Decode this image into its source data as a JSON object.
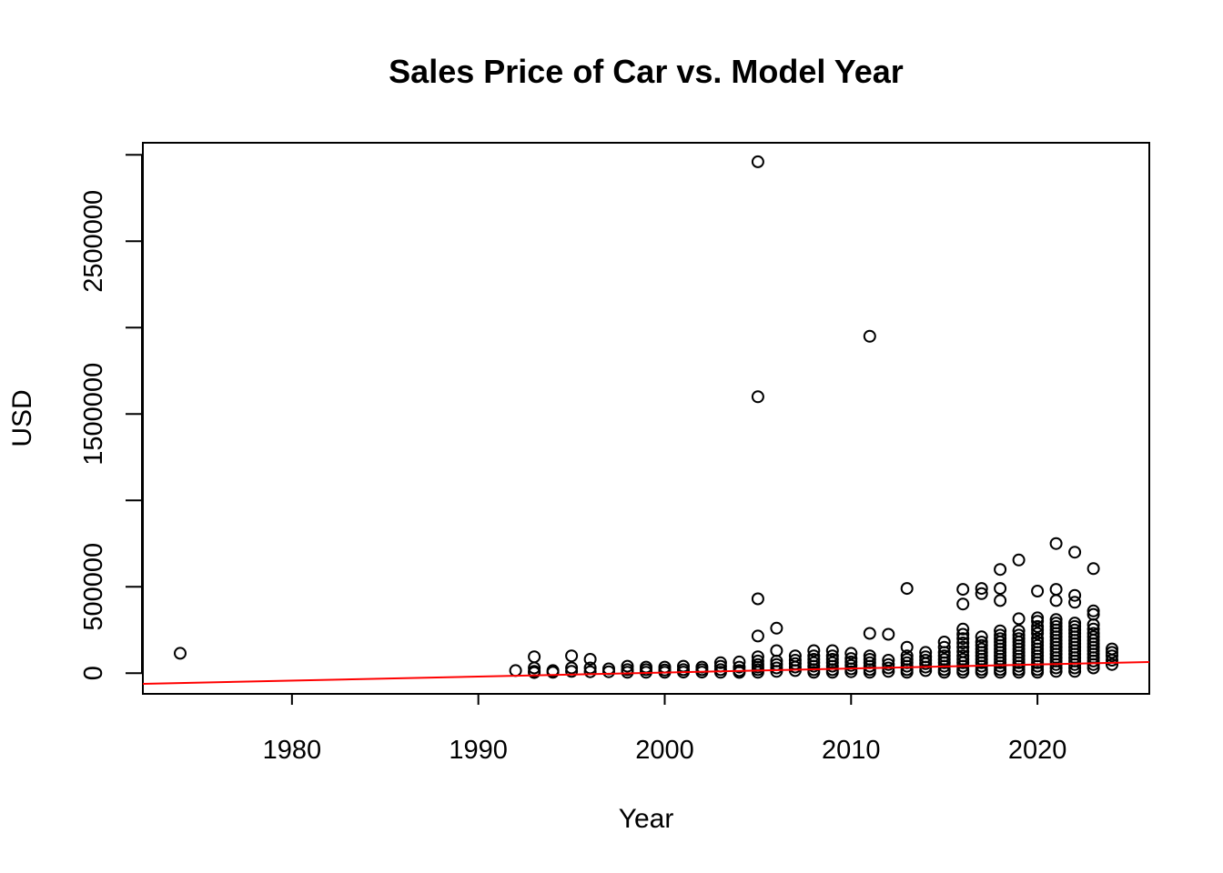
{
  "chart_data": {
    "type": "scatter",
    "title": "Sales Price of Car vs. Model Year",
    "xlabel": "Year",
    "ylabel": "USD",
    "xlim": [
      1972,
      2026
    ],
    "ylim": [
      -120000,
      3070000
    ],
    "x_ticks": [
      1980,
      1990,
      2000,
      2010,
      2020
    ],
    "x_tick_labels": [
      "1980",
      "1990",
      "2000",
      "2010",
      "2020"
    ],
    "y_ticks": [
      0,
      500000,
      1000000,
      1500000,
      2000000,
      2500000,
      3000000
    ],
    "y_tick_labels": [
      "0",
      "500000",
      "",
      "1500000",
      "",
      "2500000",
      ""
    ],
    "grid": false,
    "legend": "none",
    "point_color": "#000000",
    "fit_line": {
      "color": "#ff0000",
      "x": [
        1972,
        2026
      ],
      "y": [
        -62000,
        64000
      ]
    },
    "series": [
      {
        "points": [
          [
            1974,
            115000
          ],
          [
            1992,
            15000
          ],
          [
            1993,
            95000
          ],
          [
            1993,
            30000
          ],
          [
            1993,
            10000
          ],
          [
            1993,
            3000
          ],
          [
            1994,
            15000
          ],
          [
            1994,
            5000
          ],
          [
            1995,
            100000
          ],
          [
            1995,
            30000
          ],
          [
            1995,
            10000
          ],
          [
            1996,
            80000
          ],
          [
            1996,
            30000
          ],
          [
            1996,
            8000
          ],
          [
            1997,
            25000
          ],
          [
            1997,
            8000
          ],
          [
            1998,
            40000
          ],
          [
            1998,
            20000
          ],
          [
            1998,
            5000
          ],
          [
            1999,
            35000
          ],
          [
            1999,
            20000
          ],
          [
            1999,
            5000
          ],
          [
            2000,
            35000
          ],
          [
            2000,
            18000
          ],
          [
            2000,
            5000
          ],
          [
            2001,
            40000
          ],
          [
            2001,
            20000
          ],
          [
            2001,
            6000
          ],
          [
            2002,
            35000
          ],
          [
            2002,
            20000
          ],
          [
            2002,
            6000
          ],
          [
            2003,
            60000
          ],
          [
            2003,
            40000
          ],
          [
            2003,
            20000
          ],
          [
            2003,
            5000
          ],
          [
            2004,
            65000
          ],
          [
            2004,
            35000
          ],
          [
            2004,
            15000
          ],
          [
            2004,
            4000
          ],
          [
            2005,
            2960000
          ],
          [
            2005,
            1600000
          ],
          [
            2005,
            430000
          ],
          [
            2005,
            215000
          ],
          [
            2005,
            95000
          ],
          [
            2005,
            70000
          ],
          [
            2005,
            50000
          ],
          [
            2005,
            35000
          ],
          [
            2005,
            20000
          ],
          [
            2005,
            5000
          ],
          [
            2006,
            260000
          ],
          [
            2006,
            130000
          ],
          [
            2006,
            70000
          ],
          [
            2006,
            50000
          ],
          [
            2006,
            30000
          ],
          [
            2006,
            10000
          ],
          [
            2007,
            100000
          ],
          [
            2007,
            75000
          ],
          [
            2007,
            55000
          ],
          [
            2007,
            35000
          ],
          [
            2007,
            15000
          ],
          [
            2008,
            130000
          ],
          [
            2008,
            100000
          ],
          [
            2008,
            80000
          ],
          [
            2008,
            60000
          ],
          [
            2008,
            40000
          ],
          [
            2008,
            20000
          ],
          [
            2008,
            5000
          ],
          [
            2009,
            130000
          ],
          [
            2009,
            100000
          ],
          [
            2009,
            80000
          ],
          [
            2009,
            60000
          ],
          [
            2009,
            40000
          ],
          [
            2009,
            20000
          ],
          [
            2009,
            5000
          ],
          [
            2010,
            115000
          ],
          [
            2010,
            85000
          ],
          [
            2010,
            65000
          ],
          [
            2010,
            45000
          ],
          [
            2010,
            25000
          ],
          [
            2010,
            8000
          ],
          [
            2011,
            1950000
          ],
          [
            2011,
            230000
          ],
          [
            2011,
            100000
          ],
          [
            2011,
            80000
          ],
          [
            2011,
            60000
          ],
          [
            2011,
            40000
          ],
          [
            2011,
            20000
          ],
          [
            2011,
            5000
          ],
          [
            2012,
            225000
          ],
          [
            2012,
            75000
          ],
          [
            2012,
            50000
          ],
          [
            2012,
            30000
          ],
          [
            2012,
            10000
          ],
          [
            2013,
            490000
          ],
          [
            2013,
            150000
          ],
          [
            2013,
            100000
          ],
          [
            2013,
            80000
          ],
          [
            2013,
            60000
          ],
          [
            2013,
            40000
          ],
          [
            2013,
            20000
          ],
          [
            2013,
            5000
          ],
          [
            2014,
            120000
          ],
          [
            2014,
            95000
          ],
          [
            2014,
            75000
          ],
          [
            2014,
            55000
          ],
          [
            2014,
            35000
          ],
          [
            2014,
            15000
          ],
          [
            2015,
            180000
          ],
          [
            2015,
            150000
          ],
          [
            2015,
            120000
          ],
          [
            2015,
            100000
          ],
          [
            2015,
            80000
          ],
          [
            2015,
            60000
          ],
          [
            2015,
            40000
          ],
          [
            2015,
            20000
          ],
          [
            2015,
            5000
          ],
          [
            2016,
            485000
          ],
          [
            2016,
            400000
          ],
          [
            2016,
            255000
          ],
          [
            2016,
            225000
          ],
          [
            2016,
            200000
          ],
          [
            2016,
            175000
          ],
          [
            2016,
            150000
          ],
          [
            2016,
            125000
          ],
          [
            2016,
            100000
          ],
          [
            2016,
            80000
          ],
          [
            2016,
            60000
          ],
          [
            2016,
            40000
          ],
          [
            2016,
            20000
          ],
          [
            2016,
            5000
          ],
          [
            2017,
            490000
          ],
          [
            2017,
            460000
          ],
          [
            2017,
            210000
          ],
          [
            2017,
            180000
          ],
          [
            2017,
            160000
          ],
          [
            2017,
            140000
          ],
          [
            2017,
            120000
          ],
          [
            2017,
            100000
          ],
          [
            2017,
            80000
          ],
          [
            2017,
            60000
          ],
          [
            2017,
            40000
          ],
          [
            2017,
            20000
          ],
          [
            2017,
            5000
          ],
          [
            2018,
            600000
          ],
          [
            2018,
            490000
          ],
          [
            2018,
            420000
          ],
          [
            2018,
            245000
          ],
          [
            2018,
            220000
          ],
          [
            2018,
            200000
          ],
          [
            2018,
            180000
          ],
          [
            2018,
            160000
          ],
          [
            2018,
            140000
          ],
          [
            2018,
            120000
          ],
          [
            2018,
            100000
          ],
          [
            2018,
            80000
          ],
          [
            2018,
            60000
          ],
          [
            2018,
            40000
          ],
          [
            2018,
            20000
          ],
          [
            2018,
            5000
          ],
          [
            2019,
            655000
          ],
          [
            2019,
            315000
          ],
          [
            2019,
            245000
          ],
          [
            2019,
            220000
          ],
          [
            2019,
            200000
          ],
          [
            2019,
            180000
          ],
          [
            2019,
            160000
          ],
          [
            2019,
            140000
          ],
          [
            2019,
            120000
          ],
          [
            2019,
            100000
          ],
          [
            2019,
            80000
          ],
          [
            2019,
            60000
          ],
          [
            2019,
            40000
          ],
          [
            2019,
            20000
          ],
          [
            2019,
            5000
          ],
          [
            2020,
            475000
          ],
          [
            2020,
            320000
          ],
          [
            2020,
            300000
          ],
          [
            2020,
            270000
          ],
          [
            2020,
            250000
          ],
          [
            2020,
            230000
          ],
          [
            2020,
            200000
          ],
          [
            2020,
            180000
          ],
          [
            2020,
            160000
          ],
          [
            2020,
            140000
          ],
          [
            2020,
            120000
          ],
          [
            2020,
            100000
          ],
          [
            2020,
            80000
          ],
          [
            2020,
            60000
          ],
          [
            2020,
            40000
          ],
          [
            2020,
            20000
          ],
          [
            2020,
            5000
          ],
          [
            2021,
            750000
          ],
          [
            2021,
            485000
          ],
          [
            2021,
            420000
          ],
          [
            2021,
            310000
          ],
          [
            2021,
            290000
          ],
          [
            2021,
            270000
          ],
          [
            2021,
            250000
          ],
          [
            2021,
            230000
          ],
          [
            2021,
            210000
          ],
          [
            2021,
            190000
          ],
          [
            2021,
            170000
          ],
          [
            2021,
            150000
          ],
          [
            2021,
            130000
          ],
          [
            2021,
            110000
          ],
          [
            2021,
            90000
          ],
          [
            2021,
            70000
          ],
          [
            2021,
            50000
          ],
          [
            2021,
            30000
          ],
          [
            2021,
            10000
          ],
          [
            2022,
            700000
          ],
          [
            2022,
            450000
          ],
          [
            2022,
            410000
          ],
          [
            2022,
            290000
          ],
          [
            2022,
            270000
          ],
          [
            2022,
            250000
          ],
          [
            2022,
            230000
          ],
          [
            2022,
            210000
          ],
          [
            2022,
            190000
          ],
          [
            2022,
            170000
          ],
          [
            2022,
            150000
          ],
          [
            2022,
            130000
          ],
          [
            2022,
            110000
          ],
          [
            2022,
            90000
          ],
          [
            2022,
            70000
          ],
          [
            2022,
            50000
          ],
          [
            2022,
            30000
          ],
          [
            2022,
            10000
          ],
          [
            2023,
            605000
          ],
          [
            2023,
            360000
          ],
          [
            2023,
            340000
          ],
          [
            2023,
            280000
          ],
          [
            2023,
            255000
          ],
          [
            2023,
            230000
          ],
          [
            2023,
            210000
          ],
          [
            2023,
            190000
          ],
          [
            2023,
            170000
          ],
          [
            2023,
            150000
          ],
          [
            2023,
            130000
          ],
          [
            2023,
            110000
          ],
          [
            2023,
            90000
          ],
          [
            2023,
            70000
          ],
          [
            2023,
            50000
          ],
          [
            2023,
            30000
          ],
          [
            2024,
            140000
          ],
          [
            2024,
            120000
          ],
          [
            2024,
            100000
          ],
          [
            2024,
            75000
          ],
          [
            2024,
            50000
          ]
        ]
      }
    ]
  }
}
